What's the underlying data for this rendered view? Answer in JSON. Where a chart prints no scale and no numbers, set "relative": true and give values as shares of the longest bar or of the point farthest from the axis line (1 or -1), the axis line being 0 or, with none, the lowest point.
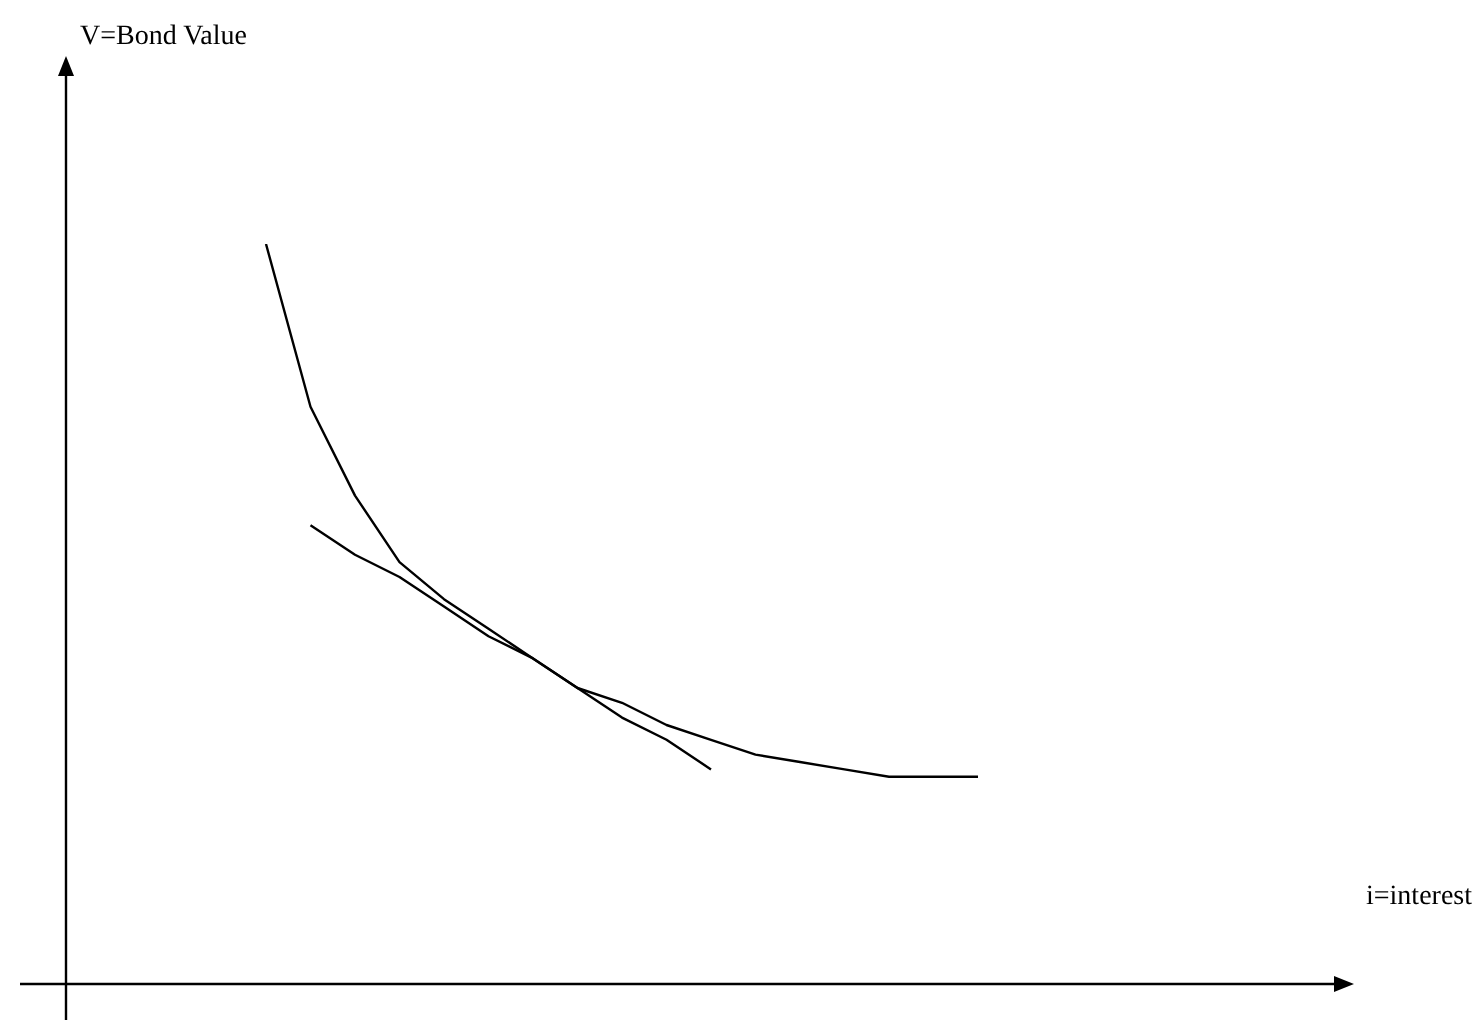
{
  "chart_data": {
    "type": "line",
    "relative": true,
    "annotations": [
      "V=Bond Value",
      "i=interest"
    ],
    "tick_labels": false,
    "marker": "none",
    "line_style": "solid",
    "categories": [
      null,
      null,
      null,
      null,
      null,
      null,
      null,
      null,
      null,
      null,
      null,
      null,
      null,
      null,
      null,
      null,
      null
    ],
    "series": [
      {
        "color": "#000000",
        "values": [
          1.0,
          0.78,
          0.66,
          0.57,
          0.52,
          0.48,
          0.44,
          0.4,
          0.38,
          0.35,
          0.33,
          0.31,
          0.3,
          0.29,
          0.28,
          0.28,
          0.28
        ]
      },
      {
        "color": "#000000",
        "values": [
          null,
          0.62,
          0.58,
          0.55,
          0.51,
          0.47,
          0.44,
          0.4,
          0.36,
          0.33,
          0.29,
          null,
          null,
          null,
          null,
          null,
          null
        ]
      }
    ]
  }
}
